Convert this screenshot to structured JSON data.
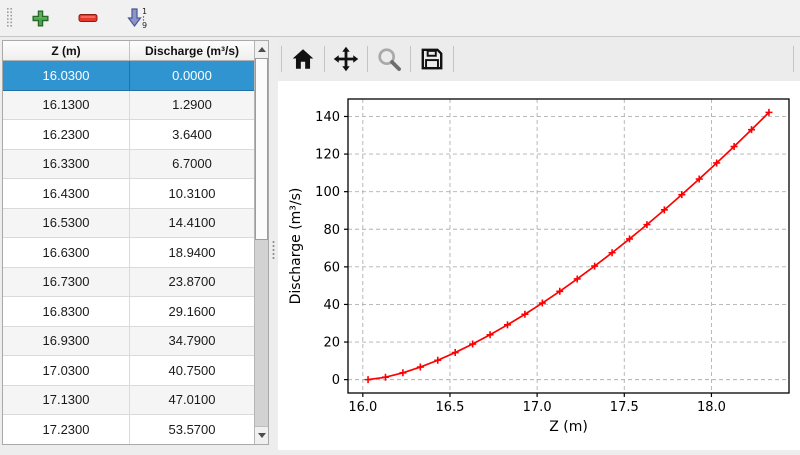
{
  "top_toolbar": {
    "buttons": [
      {
        "name": "add-row",
        "icon": "plus-icon"
      },
      {
        "name": "remove-row",
        "icon": "minus-icon"
      },
      {
        "name": "sort-rows",
        "icon": "sort-numeric-icon",
        "sort_top": "1",
        "sort_bottom": "9"
      }
    ]
  },
  "table": {
    "columns": [
      "Z (m)",
      "Discharge (m³/s)"
    ],
    "selected_row_index": 0,
    "rows": [
      [
        "16.0300",
        "0.0000"
      ],
      [
        "16.1300",
        "1.2900"
      ],
      [
        "16.2300",
        "3.6400"
      ],
      [
        "16.3300",
        "6.7000"
      ],
      [
        "16.4300",
        "10.3100"
      ],
      [
        "16.5300",
        "14.4100"
      ],
      [
        "16.6300",
        "18.9400"
      ],
      [
        "16.7300",
        "23.8700"
      ],
      [
        "16.8300",
        "29.1600"
      ],
      [
        "16.9300",
        "34.7900"
      ],
      [
        "17.0300",
        "40.7500"
      ],
      [
        "17.1300",
        "47.0100"
      ],
      [
        "17.2300",
        "53.5700"
      ]
    ]
  },
  "chart_toolbar": {
    "buttons": [
      {
        "name": "home",
        "icon": "home-icon"
      },
      {
        "name": "pan",
        "icon": "move-icon"
      },
      {
        "name": "zoom",
        "icon": "magnifier-icon"
      },
      {
        "name": "save",
        "icon": "save-icon"
      }
    ]
  },
  "chart_data": {
    "type": "line",
    "title": "",
    "xlabel": "Z (m)",
    "ylabel": "Discharge (m³/s)",
    "x": [
      16.03,
      16.13,
      16.23,
      16.33,
      16.43,
      16.53,
      16.63,
      16.73,
      16.83,
      16.93,
      17.03,
      17.13,
      17.23,
      17.33,
      17.43,
      17.53,
      17.63,
      17.73,
      17.83,
      17.93,
      18.03,
      18.13,
      18.23,
      18.33
    ],
    "y": [
      0.0,
      1.29,
      3.64,
      6.7,
      10.31,
      14.41,
      18.94,
      23.87,
      29.16,
      34.79,
      40.75,
      47.01,
      53.57,
      60.4,
      67.5,
      74.86,
      82.47,
      90.33,
      98.41,
      106.72,
      115.26,
      124.02,
      133.0,
      142.19
    ],
    "xticks": [
      16.0,
      16.5,
      17.0,
      17.5,
      18.0
    ],
    "xtick_labels": [
      "16.0",
      "16.5",
      "17.0",
      "17.5",
      "18.0"
    ],
    "yticks": [
      0,
      20,
      40,
      60,
      80,
      100,
      120,
      140
    ],
    "ytick_labels": [
      "0",
      "20",
      "40",
      "60",
      "80",
      "100",
      "120",
      "140"
    ],
    "xlim": [
      15.915,
      18.445
    ],
    "ylim": [
      -7.11,
      149.3
    ],
    "grid": true,
    "legend": null,
    "colors": {
      "line": "#ff0000",
      "grid": "#b0b0b0",
      "axis": "#000000"
    },
    "marker": "plus"
  }
}
